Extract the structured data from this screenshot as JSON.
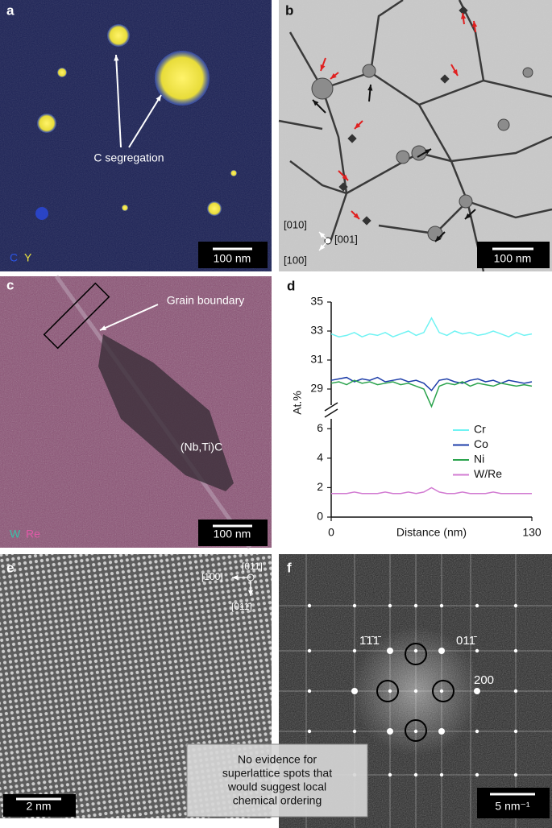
{
  "panels": {
    "a": {
      "label": "a",
      "annotation": "C segregation",
      "scale_bar": "100 nm",
      "channels": [
        "C",
        "Y"
      ]
    },
    "b": {
      "label": "b",
      "scale_bar": "100 nm",
      "directions": [
        "[010]",
        "[001]",
        "[100]"
      ]
    },
    "c": {
      "label": "c",
      "annotation": "Grain boundary",
      "particle": "(Nb,Ti)C",
      "scale_bar": "100 nm",
      "channels": [
        "W",
        "Re"
      ]
    },
    "d": {
      "label": "d"
    },
    "e": {
      "label": "e",
      "scale_bar": "2 nm",
      "directions": [
        "[011]",
        "[1̄00]",
        "[011̄]"
      ]
    },
    "f": {
      "label": "f",
      "spots": [
        "1̄1̄1̄",
        "011̄",
        "200"
      ],
      "scale_bar": "5 nm⁻¹",
      "note": [
        "No evidence for",
        "superlattice spots that",
        "would suggest local",
        "chemical ordering"
      ]
    }
  },
  "chart_data": [
    {
      "type": "line",
      "ylabel": "At.%",
      "x": [
        0,
        5,
        10,
        15,
        20,
        25,
        30,
        35,
        40,
        45,
        50,
        55,
        60,
        65,
        70,
        75,
        80,
        85,
        90,
        95,
        100,
        105,
        110,
        115,
        120,
        125,
        130
      ],
      "xlim": [
        0,
        130
      ],
      "ylim": [
        27.5,
        35
      ],
      "yticks": [
        29,
        31,
        33,
        35
      ],
      "series": [
        {
          "name": "Cr",
          "color": "#6ff3f3",
          "values": [
            32.8,
            32.6,
            32.7,
            32.9,
            32.6,
            32.8,
            32.7,
            32.9,
            32.6,
            32.8,
            33.0,
            32.7,
            32.9,
            33.9,
            32.9,
            32.7,
            33.0,
            32.8,
            32.9,
            32.7,
            32.8,
            33.0,
            32.8,
            32.6,
            32.9,
            32.7,
            32.8
          ]
        },
        {
          "name": "Co",
          "color": "#1c3ca8",
          "values": [
            29.6,
            29.7,
            29.8,
            29.5,
            29.7,
            29.6,
            29.8,
            29.5,
            29.6,
            29.7,
            29.5,
            29.6,
            29.4,
            28.9,
            29.6,
            29.7,
            29.5,
            29.4,
            29.6,
            29.7,
            29.5,
            29.6,
            29.4,
            29.6,
            29.5,
            29.4,
            29.5
          ]
        },
        {
          "name": "Ni",
          "color": "#2aa34c",
          "values": [
            29.4,
            29.5,
            29.3,
            29.6,
            29.4,
            29.5,
            29.3,
            29.4,
            29.5,
            29.3,
            29.4,
            29.2,
            29.0,
            27.8,
            29.2,
            29.4,
            29.3,
            29.5,
            29.2,
            29.4,
            29.3,
            29.2,
            29.4,
            29.3,
            29.2,
            29.3,
            29.2
          ]
        }
      ]
    },
    {
      "type": "line",
      "xlabel": "Distance (nm)",
      "x": [
        0,
        5,
        10,
        15,
        20,
        25,
        30,
        35,
        40,
        45,
        50,
        55,
        60,
        65,
        70,
        75,
        80,
        85,
        90,
        95,
        100,
        105,
        110,
        115,
        120,
        125,
        130
      ],
      "xlim": [
        0,
        130
      ],
      "xticks": [
        0,
        130
      ],
      "ylim": [
        0,
        7
      ],
      "yticks": [
        0,
        2,
        4,
        6
      ],
      "series": [
        {
          "name": "W/Re",
          "color": "#d27bd2",
          "values": [
            1.6,
            1.6,
            1.6,
            1.7,
            1.6,
            1.6,
            1.6,
            1.7,
            1.6,
            1.6,
            1.7,
            1.6,
            1.7,
            2.0,
            1.7,
            1.6,
            1.6,
            1.7,
            1.6,
            1.6,
            1.6,
            1.7,
            1.6,
            1.6,
            1.6,
            1.6,
            1.6
          ]
        }
      ]
    }
  ]
}
